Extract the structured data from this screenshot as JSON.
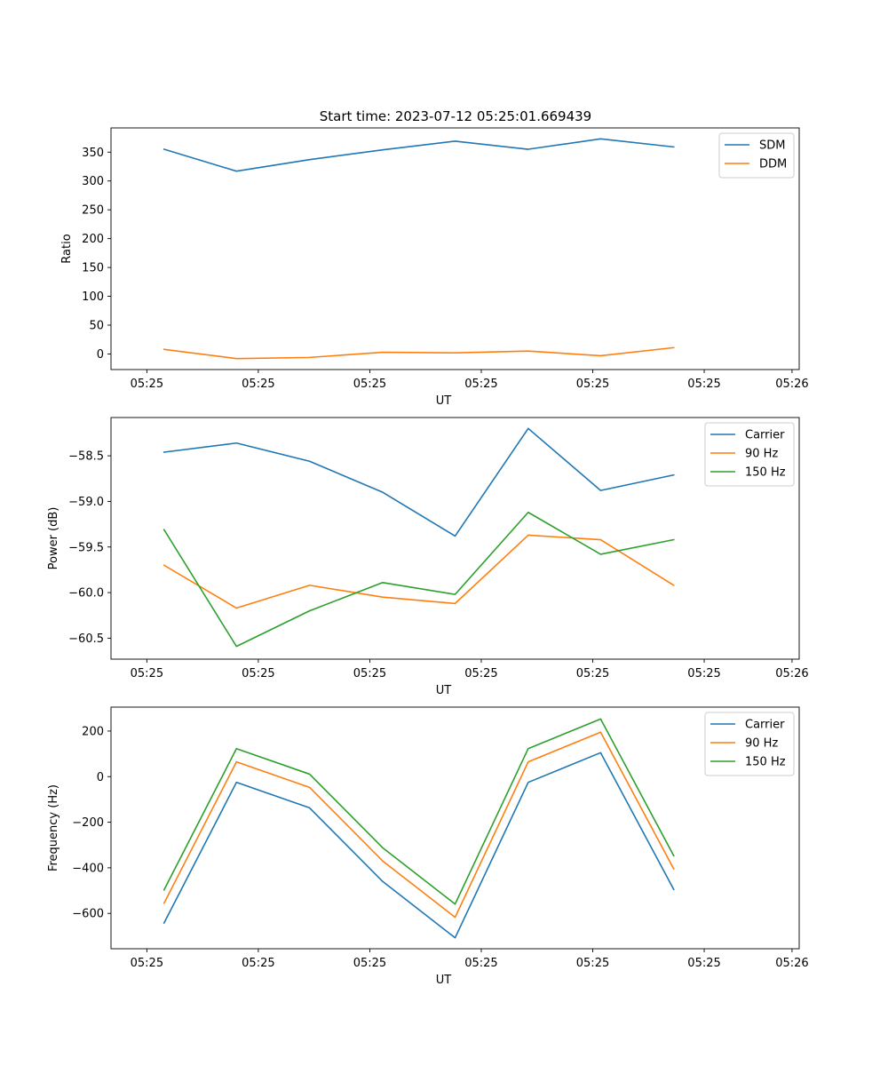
{
  "figure": {
    "title": "Start time: 2023-07-12 05:25:01.669439"
  },
  "colors": {
    "blue": "#1f77b4",
    "orange": "#ff7f0e",
    "green": "#2ca02c"
  },
  "chart_data": [
    {
      "type": "line",
      "name": "ratio",
      "title": "Start time: 2023-07-12 05:25:01.669439",
      "xlabel": "UT",
      "ylabel": "Ratio",
      "xlim": [
        -0.5,
        9.1
      ],
      "ylim": [
        -27,
        392
      ],
      "xticks": [
        0,
        1.555,
        3.11,
        4.665,
        6.22,
        7.775,
        9.0
      ],
      "xtick_labels": [
        "05:25",
        "05:25",
        "05:25",
        "05:25",
        "05:25",
        "05:25",
        "05:26"
      ],
      "yticks": [
        0,
        50,
        100,
        150,
        200,
        250,
        300,
        350
      ],
      "ytick_labels": [
        "0",
        "50",
        "100",
        "150",
        "200",
        "250",
        "300",
        "350"
      ],
      "legend": "top-right",
      "x": [
        0.24,
        1.25,
        2.27,
        3.29,
        4.3,
        5.32,
        6.33,
        7.35
      ],
      "series": [
        {
          "name": "SDM",
          "color": "#1f77b4",
          "values": [
            355,
            317,
            337,
            354,
            369,
            355,
            373,
            359
          ]
        },
        {
          "name": "DDM",
          "color": "#ff7f0e",
          "values": [
            8,
            -8,
            -6,
            3,
            2,
            5,
            -3,
            11
          ]
        }
      ]
    },
    {
      "type": "line",
      "name": "power",
      "xlabel": "UT",
      "ylabel": "Power (dB)",
      "xlim": [
        -0.5,
        9.1
      ],
      "ylim": [
        -60.73,
        -58.08
      ],
      "xticks": [
        0,
        1.555,
        3.11,
        4.665,
        6.22,
        7.775,
        9.0
      ],
      "xtick_labels": [
        "05:25",
        "05:25",
        "05:25",
        "05:25",
        "05:25",
        "05:25",
        "05:26"
      ],
      "yticks": [
        -60.5,
        -60.0,
        -59.5,
        -59.0,
        -58.5
      ],
      "ytick_labels": [
        "−60.5",
        "−60.0",
        "−59.5",
        "−59.0",
        "−58.5"
      ],
      "legend": "top-right",
      "x": [
        0.24,
        1.25,
        2.27,
        3.29,
        4.3,
        5.32,
        6.33,
        7.35
      ],
      "series": [
        {
          "name": "Carrier",
          "color": "#1f77b4",
          "values": [
            -58.46,
            -58.36,
            -58.56,
            -58.9,
            -59.38,
            -58.2,
            -58.88,
            -58.71
          ]
        },
        {
          "name": "90 Hz",
          "color": "#ff7f0e",
          "values": [
            -59.7,
            -60.17,
            -59.92,
            -60.05,
            -60.12,
            -59.37,
            -59.42,
            -59.92
          ]
        },
        {
          "name": "150 Hz",
          "color": "#2ca02c",
          "values": [
            -59.31,
            -60.59,
            -60.2,
            -59.89,
            -60.02,
            -59.12,
            -59.58,
            -59.42
          ]
        }
      ]
    },
    {
      "type": "line",
      "name": "frequency",
      "xlabel": "UT",
      "ylabel": "Frequency (Hz)",
      "xlim": [
        -0.5,
        9.1
      ],
      "ylim": [
        -755,
        305
      ],
      "xticks": [
        0,
        1.555,
        3.11,
        4.665,
        6.22,
        7.775,
        9.0
      ],
      "xtick_labels": [
        "05:25",
        "05:25",
        "05:25",
        "05:25",
        "05:25",
        "05:25",
        "05:26"
      ],
      "yticks": [
        -600,
        -400,
        -200,
        0,
        200
      ],
      "ytick_labels": [
        "−600",
        "−400",
        "−200",
        "0",
        "200"
      ],
      "legend": "top-right",
      "x": [
        0.24,
        1.25,
        2.27,
        3.29,
        4.3,
        5.32,
        6.33,
        7.35
      ],
      "series": [
        {
          "name": "Carrier",
          "color": "#1f77b4",
          "values": [
            -642,
            -25,
            -137,
            -460,
            -707,
            -25,
            105,
            -495
          ]
        },
        {
          "name": "90 Hz",
          "color": "#ff7f0e",
          "values": [
            -555,
            65,
            -47,
            -370,
            -617,
            65,
            195,
            -405
          ]
        },
        {
          "name": "150 Hz",
          "color": "#2ca02c",
          "values": [
            -497,
            123,
            11,
            -312,
            -559,
            123,
            253,
            -347
          ]
        }
      ]
    }
  ]
}
